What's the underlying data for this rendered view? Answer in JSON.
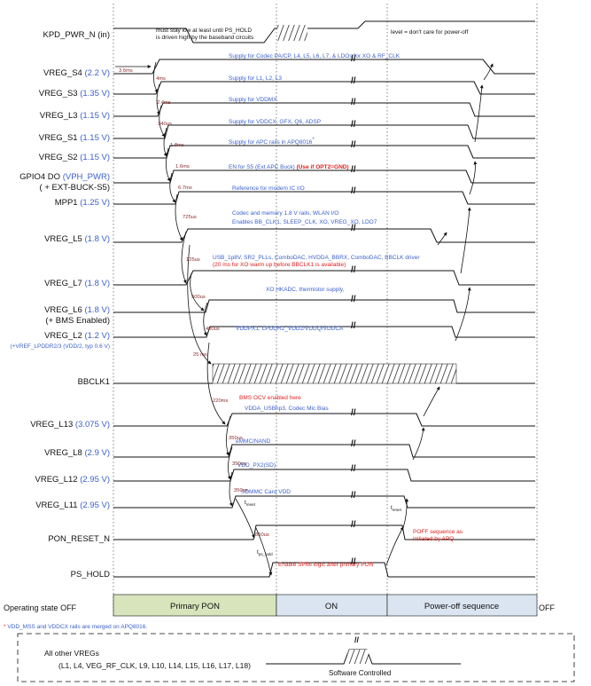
{
  "signals": [
    {
      "id": "kpd",
      "name": "KPD_PWR_N (in)",
      "volt": ""
    },
    {
      "id": "s4",
      "name": "VREG_S4",
      "volt": "(2.2 V)"
    },
    {
      "id": "s3",
      "name": "VREG_S3",
      "volt": "(1.35 V)"
    },
    {
      "id": "l3",
      "name": "VREG_L3",
      "volt": "(1.15 V)"
    },
    {
      "id": "s1",
      "name": "VREG_S1",
      "volt": "(1.15 V)"
    },
    {
      "id": "s2",
      "name": "VREG_S2",
      "volt": "(1.15 V)"
    },
    {
      "id": "gpio4",
      "name": "GPIO4 DO",
      "volt": "(VPH_PWR)",
      "sub": "( + EXT-BUCK-S5)"
    },
    {
      "id": "mpp1",
      "name": "MPP1",
      "volt": "(1.25 V)"
    },
    {
      "id": "l5",
      "name": "VREG_L5",
      "volt": "(1.8 V)"
    },
    {
      "id": "l7",
      "name": "VREG_L7",
      "volt": "(1.8 V)"
    },
    {
      "id": "l6",
      "name": "VREG_L6",
      "volt": "(1.8 V)",
      "sub": "(+ BMS Enabled)"
    },
    {
      "id": "l2",
      "name": "VREG_L2",
      "volt": "(1.2 V)",
      "sub": "(+VREF_LPDDR2/3 (VDD/2, typ 0.6 V)"
    },
    {
      "id": "bbclk",
      "name": "BBCLK1",
      "volt": ""
    },
    {
      "id": "l13",
      "name": "VREG_L13",
      "volt": "(3.075 V)"
    },
    {
      "id": "l8",
      "name": "VREG_L8",
      "volt": "(2.9 V)"
    },
    {
      "id": "l12",
      "name": "VREG_L12",
      "volt": "(2.95 V)"
    },
    {
      "id": "l11",
      "name": "VREG_L11",
      "volt": "(2.95 V)"
    },
    {
      "id": "pon",
      "name": "PON_RESET_N",
      "volt": ""
    },
    {
      "id": "ps",
      "name": "PS_HOLD",
      "volt": ""
    }
  ],
  "annotations": {
    "kpd_low": "must stay low at least until PS_HOLD",
    "kpd_low2": "is driven high by the baseband circuits",
    "kpd_care": "level = don't care for power-off",
    "s4": "Supply for Codec PA/CP, L4, L5, L6, L7, & LDOs for XO & RF_CLK",
    "s3": "Supply for L1, L2, L3",
    "l3": "Supply for VDDMX",
    "s1": "Supply for VDDCX, GFX, Q6, ADSP",
    "s2": "Supply for APC rails in APQ8016",
    "s2_star": "*",
    "gpio4_a": "EN for S5 (Ext APC Buck) ",
    "gpio4_b": "(Use if OPT2=GND)",
    "mpp1": "Reference for modem IC I/O",
    "l5_a": "Codec and memory 1.8 V rails, WLAN I/O",
    "l5_b": "Enables BB_CLK1, SLEEP_CLK, XO, VREG_XO, LDO7",
    "l7_a": "USB_1p8V, SR2_PLLs, ComboDAC, HVDDA_BBRX, ComboDAC, BBCLK driver",
    "l7_b": "(20 ms for XO warm up before BBCLK1 is available)",
    "l6": "XO HKADC, thermistor supply,",
    "l2": "VDDPX1, LPDDR2_VDD2/VDDQ/VDDCA",
    "bms": "BMS OCV enabled here",
    "l13": "VDDA_USBhp3, Codec Mic Bias",
    "l8": "eMMC/NAND",
    "l12": "VDD_PX2(SD)",
    "l11": "SDMMC Card VDD",
    "pshold": "Enable SPMI logic after primary PON",
    "poff_a": "POFF sequence as",
    "poff_b": "initiated by APQ",
    "t_reset": "t",
    "t_reset_sub": "reset",
    "t_pshold": "t",
    "t_pshold_sub": "ps_hold",
    "t_reset2": "t",
    "t_reset2_sub": "reset"
  },
  "delays": {
    "d1": "3.6ms",
    "d2": "4ms",
    "d3": "2.4ms",
    "d4": "340us",
    "d5": "1.8ms",
    "d6": "1.6ms",
    "d7": "6.7ms",
    "d8": "725us",
    "d9": "125us",
    "d10": "500us",
    "d11": "400us",
    "d12": "25 ms",
    "d13": "220ms",
    "d14": "350us",
    "d15": "350us",
    "d16": "350us",
    "d17": "850us"
  },
  "states": {
    "label": "Operating state",
    "off": "OFF",
    "primary": "Primary PON",
    "on": "ON",
    "poff": "Power-off sequence",
    "off2": "OFF"
  },
  "footnote": "VDD_MSS and VDDCX rails are merged on APQ8016.",
  "footnote_star": "*",
  "others": {
    "title": "All other VREGs",
    "list": "(L1, L4, VEG_RF_CLK, L9, L10, L14, L15, L16, L17, L18)",
    "sw": "Software Controlled"
  },
  "colors": {
    "volt": "#3a5fcd",
    "note": "#3a5fcd",
    "red": "#e02020",
    "delay": "#8b2a2a",
    "cyan": "#3aa0c0",
    "primary_fill": "#d8e4bc",
    "on_fill": "#dbe5f1",
    "poff_fill": "#dbe5f1"
  }
}
